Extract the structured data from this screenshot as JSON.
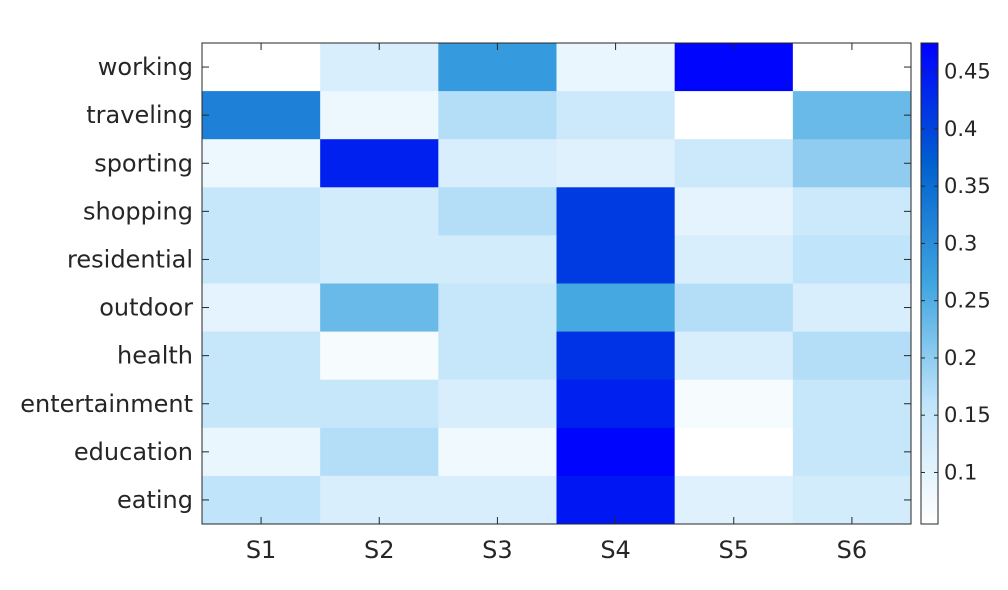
{
  "chart_data": {
    "type": "heatmap",
    "title": "",
    "xlabel": "",
    "ylabel": "",
    "columns": [
      "S1",
      "S2",
      "S3",
      "S4",
      "S5",
      "S6"
    ],
    "rows": [
      "working",
      "traveling",
      "sporting",
      "shopping",
      "residential",
      "outdoor",
      "health",
      "entertainment",
      "education",
      "eating"
    ],
    "values": [
      [
        0.055,
        0.12,
        0.28,
        0.09,
        0.47,
        0.055
      ],
      [
        0.32,
        0.085,
        0.17,
        0.14,
        0.055,
        0.23
      ],
      [
        0.085,
        0.44,
        0.12,
        0.11,
        0.14,
        0.2
      ],
      [
        0.15,
        0.13,
        0.17,
        0.41,
        0.1,
        0.14
      ],
      [
        0.15,
        0.13,
        0.13,
        0.41,
        0.12,
        0.16
      ],
      [
        0.1,
        0.23,
        0.15,
        0.26,
        0.17,
        0.12
      ],
      [
        0.15,
        0.07,
        0.15,
        0.42,
        0.12,
        0.17
      ],
      [
        0.15,
        0.15,
        0.12,
        0.44,
        0.07,
        0.15
      ],
      [
        0.09,
        0.17,
        0.08,
        0.47,
        0.055,
        0.15
      ],
      [
        0.16,
        0.12,
        0.12,
        0.45,
        0.11,
        0.13
      ]
    ],
    "colorbar": {
      "min": 0.055,
      "max": 0.475,
      "ticks": [
        0.1,
        0.15,
        0.2,
        0.25,
        0.3,
        0.35,
        0.4,
        0.45
      ],
      "tick_labels": [
        "0.1",
        "0.15",
        "0.2",
        "0.25",
        "0.3",
        "0.35",
        "0.4",
        "0.45"
      ],
      "colormap": [
        "#ffffff",
        "#c0e4fa",
        "#3fa5e0",
        "#0060cf",
        "#0000ff"
      ]
    },
    "grid": false
  }
}
